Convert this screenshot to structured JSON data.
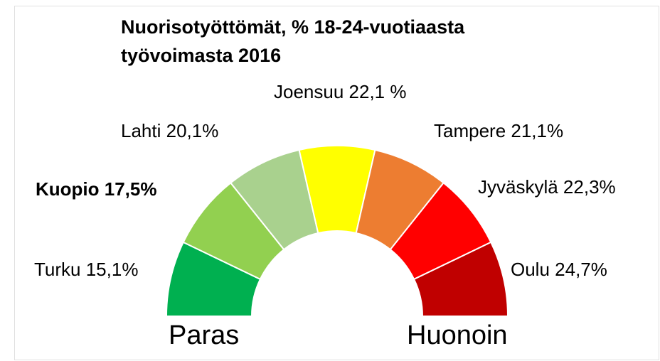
{
  "title": [
    "Nuorisotyöttömät, % 18-24-vuotiaasta",
    "työvoimasta 2016"
  ],
  "segments": [
    {
      "label": "Turku 15,1%",
      "color": "#00b050"
    },
    {
      "label": "Kuopio 17,5%",
      "color": "#92d050",
      "bold": true
    },
    {
      "label": "Lahti 20,1%",
      "color": "#a9d18e"
    },
    {
      "label": "Joensuu 22,1 %",
      "color": "#ffff00"
    },
    {
      "label": "Tampere 21,1%",
      "color": "#ed7d31"
    },
    {
      "label": "Jyväskylä 22,3%",
      "color": "#ff0000"
    },
    {
      "label": "Oulu 24,7%",
      "color": "#c00000"
    }
  ],
  "left_end": "Paras",
  "right_end": "Huonoin"
}
